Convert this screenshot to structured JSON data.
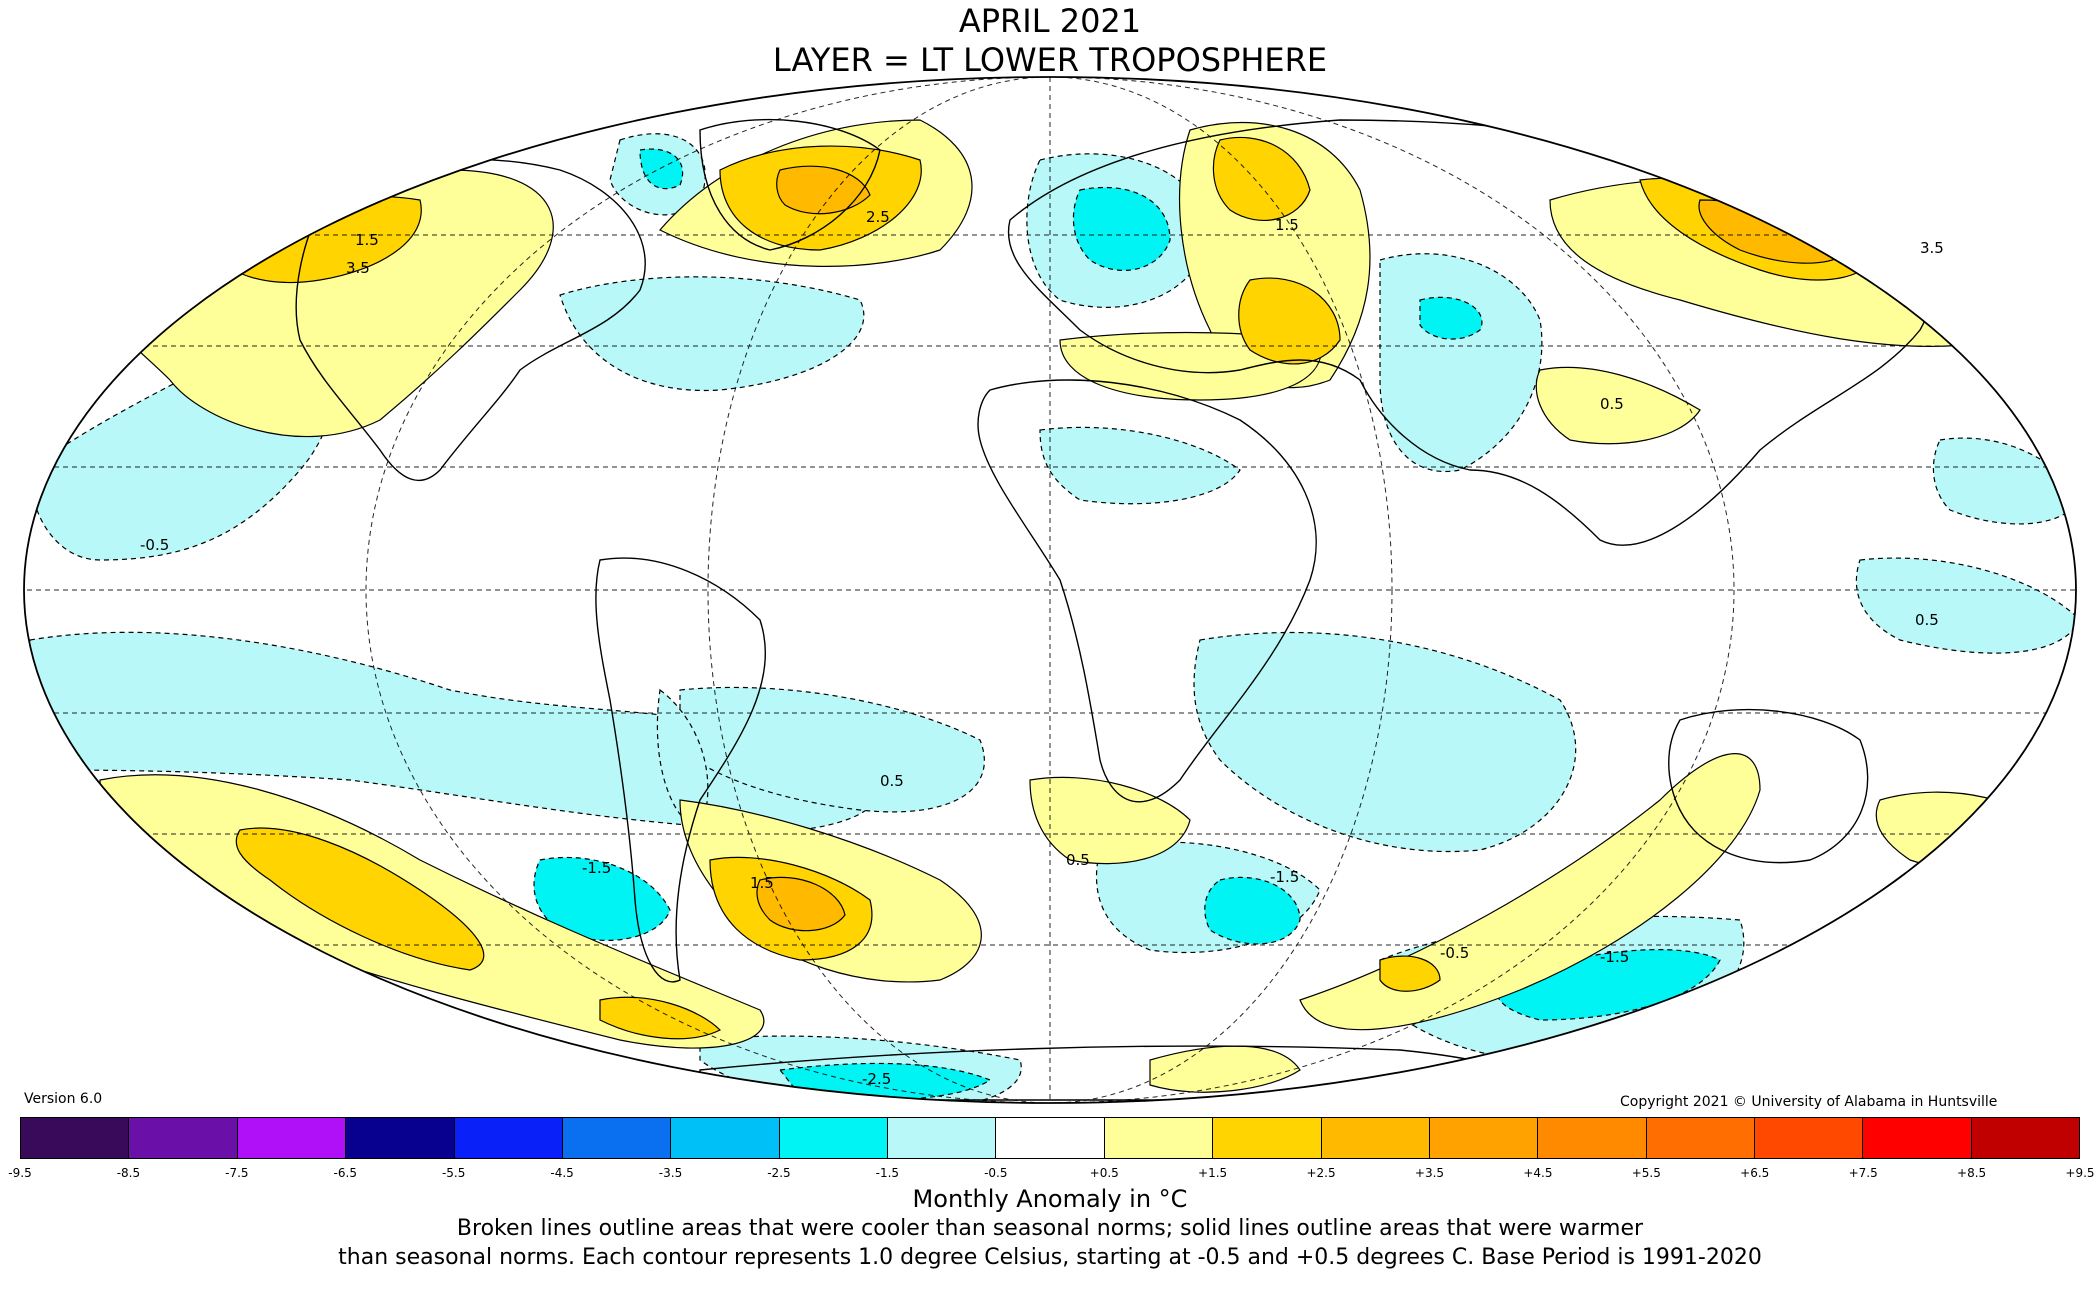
{
  "title_line1": "APRIL 2021",
  "title_line2": "LAYER = LT LOWER TROPOSPHERE",
  "version": "Version 6.0",
  "copyright": "Copyright 2021 © University of Alabama in Huntsville",
  "legend": {
    "ticks": [
      "-9.5",
      "-8.5",
      "-7.5",
      "-6.5",
      "-5.5",
      "-4.5",
      "-3.5",
      "-2.5",
      "-1.5",
      "-0.5",
      "+0.5",
      "+1.5",
      "+2.5",
      "+3.5",
      "+4.5",
      "+5.5",
      "+6.5",
      "+7.5",
      "+8.5",
      "+9.5"
    ],
    "colors": [
      "#3a0a5a",
      "#6a10a8",
      "#b010f8",
      "#08008e",
      "#0a20f8",
      "#0a70f0",
      "#00c0f8",
      "#00f4f4",
      "#b8f8f8",
      "#ffffff",
      "#ffff9a",
      "#ffd400",
      "#ffba00",
      "#ffa200",
      "#ff8a00",
      "#ff6e00",
      "#ff4800",
      "#ff0000",
      "#c00000"
    ],
    "unit_label": "Monthly Anomaly in °C"
  },
  "caption_line1": "Broken lines outline areas that were cooler than seasonal norms; solid lines outline areas that were warmer",
  "caption_line2": "than seasonal norms. Each contour represents 1.0 degree Celsius, starting at -0.5 and +0.5 degrees C. Base Period is 1991-2020",
  "map": {
    "projection": "Mollweide",
    "central_meridian": 0,
    "contour_labels": [
      "0.5",
      "1.5",
      "2.5",
      "3.5",
      "-0.5",
      "-1.5",
      "-2.5"
    ]
  }
}
